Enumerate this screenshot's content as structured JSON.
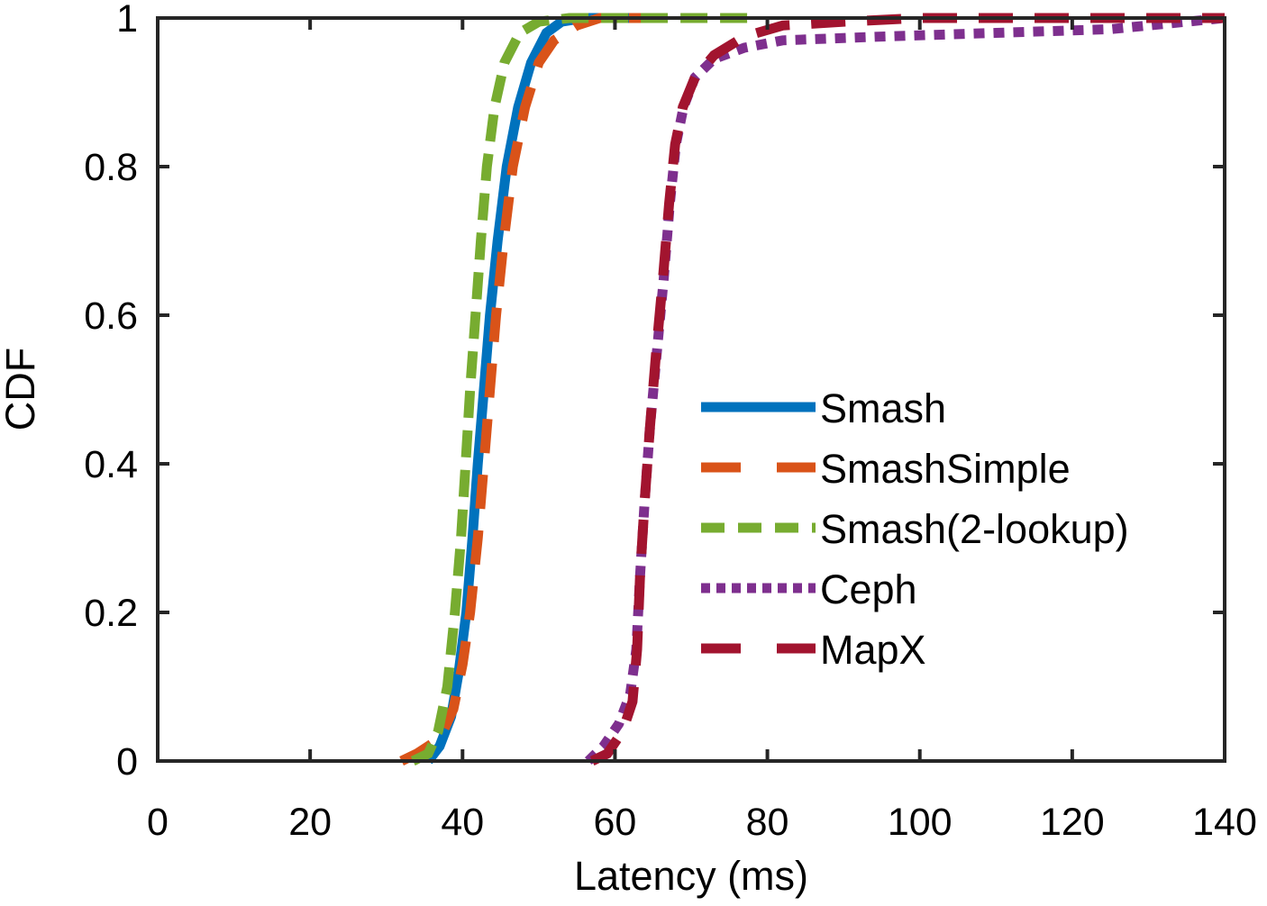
{
  "chart_data": {
    "type": "line",
    "title": "",
    "xlabel": "Latency (ms)",
    "ylabel": "CDF",
    "xlim": [
      0,
      140
    ],
    "ylim": [
      0,
      1
    ],
    "xticks": [
      0,
      20,
      40,
      60,
      80,
      100,
      120,
      140
    ],
    "yticks": [
      0,
      0.2,
      0.4,
      0.6,
      0.8,
      1
    ],
    "xtick_labels": [
      "0",
      "20",
      "40",
      "60",
      "80",
      "100",
      "120",
      "140"
    ],
    "ytick_labels": [
      "0",
      "0.2",
      "0.4",
      "0.6",
      "0.8",
      "1"
    ],
    "grid": false,
    "legend_position": "center-right",
    "series": [
      {
        "name": "Smash",
        "color": "#0072BD",
        "style": "solid",
        "points": [
          [
            35.5,
            0
          ],
          [
            37,
            0.02
          ],
          [
            38.5,
            0.06
          ],
          [
            39.5,
            0.12
          ],
          [
            40.5,
            0.2
          ],
          [
            41.3,
            0.3
          ],
          [
            42,
            0.4
          ],
          [
            42.8,
            0.5
          ],
          [
            43.6,
            0.6
          ],
          [
            44.6,
            0.7
          ],
          [
            45.8,
            0.8
          ],
          [
            47.3,
            0.88
          ],
          [
            49,
            0.94
          ],
          [
            51,
            0.98
          ],
          [
            53,
            0.995
          ],
          [
            56,
            1.0
          ],
          [
            62,
            1.0
          ]
        ]
      },
      {
        "name": "SmashSimple",
        "color": "#D95319",
        "style": "dash",
        "points": [
          [
            32,
            0
          ],
          [
            34,
            0.01
          ],
          [
            37,
            0.03
          ],
          [
            38.8,
            0.07
          ],
          [
            40,
            0.13
          ],
          [
            41,
            0.2
          ],
          [
            42,
            0.3
          ],
          [
            42.8,
            0.4
          ],
          [
            43.6,
            0.5
          ],
          [
            44.4,
            0.6
          ],
          [
            45.4,
            0.7
          ],
          [
            46.6,
            0.8
          ],
          [
            48.2,
            0.88
          ],
          [
            50,
            0.94
          ],
          [
            52,
            0.97
          ],
          [
            55,
            0.99
          ],
          [
            58,
            1.0
          ],
          [
            70,
            1.0
          ]
        ]
      },
      {
        "name": "Smash(2-lookup)",
        "color": "#77AC30",
        "style": "dash-short",
        "points": [
          [
            33.5,
            0
          ],
          [
            35.5,
            0.01
          ],
          [
            36.8,
            0.04
          ],
          [
            38,
            0.1
          ],
          [
            39,
            0.2
          ],
          [
            39.8,
            0.3
          ],
          [
            40.4,
            0.4
          ],
          [
            41,
            0.5
          ],
          [
            41.7,
            0.6
          ],
          [
            42.4,
            0.7
          ],
          [
            43.2,
            0.8
          ],
          [
            44.2,
            0.88
          ],
          [
            45.5,
            0.94
          ],
          [
            47.5,
            0.98
          ],
          [
            50,
            0.995
          ],
          [
            54,
            1.0
          ],
          [
            79,
            1.0
          ]
        ]
      },
      {
        "name": "Ceph",
        "color": "#7E2F8E",
        "style": "dot",
        "points": [
          [
            56.5,
            0
          ],
          [
            58.5,
            0.02
          ],
          [
            60.5,
            0.05
          ],
          [
            62,
            0.09
          ],
          [
            62.8,
            0.15
          ],
          [
            63.3,
            0.25
          ],
          [
            63.9,
            0.35
          ],
          [
            64.6,
            0.45
          ],
          [
            65.5,
            0.55
          ],
          [
            66.4,
            0.65
          ],
          [
            67.2,
            0.75
          ],
          [
            68,
            0.83
          ],
          [
            69,
            0.88
          ],
          [
            70.5,
            0.92
          ],
          [
            73,
            0.945
          ],
          [
            77,
            0.96
          ],
          [
            82,
            0.97
          ],
          [
            95,
            0.975
          ],
          [
            110,
            0.98
          ],
          [
            125,
            0.985
          ],
          [
            140,
            1.0
          ]
        ]
      },
      {
        "name": "MapX",
        "color": "#A2142F",
        "style": "dash",
        "points": [
          [
            57,
            0
          ],
          [
            59,
            0.01
          ],
          [
            61,
            0.04
          ],
          [
            62.3,
            0.08
          ],
          [
            62.9,
            0.15
          ],
          [
            63.3,
            0.25
          ],
          [
            63.9,
            0.35
          ],
          [
            64.6,
            0.45
          ],
          [
            65.4,
            0.55
          ],
          [
            66.3,
            0.65
          ],
          [
            67.1,
            0.75
          ],
          [
            67.9,
            0.83
          ],
          [
            68.9,
            0.88
          ],
          [
            70.5,
            0.92
          ],
          [
            73,
            0.95
          ],
          [
            77,
            0.975
          ],
          [
            82,
            0.99
          ],
          [
            90,
            0.995
          ],
          [
            100,
            1.0
          ],
          [
            140,
            1.0
          ]
        ]
      }
    ]
  }
}
